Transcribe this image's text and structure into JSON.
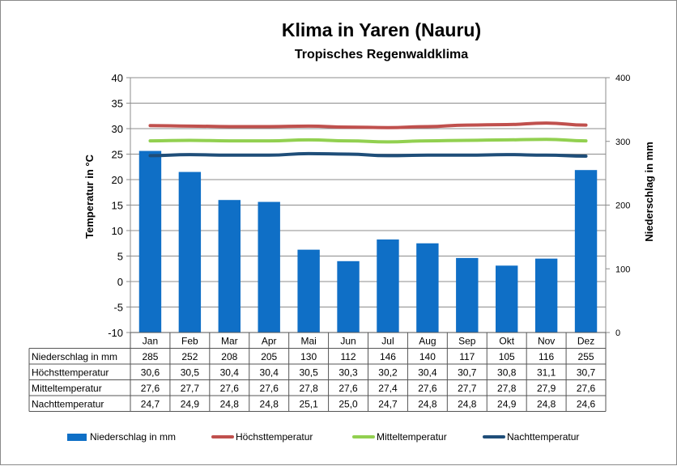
{
  "chart_data": {
    "type": "bar",
    "title": "Klima in Yaren (Nauru)",
    "subtitle": "Tropisches Regenwaldklima",
    "ylabel_left": "Temperatur in °C",
    "ylabel_right": "Niederschlag in mm",
    "ylim_left": [
      -10,
      40
    ],
    "ylim_right": [
      0,
      400
    ],
    "yticks_left": [
      40,
      35,
      30,
      25,
      20,
      15,
      10,
      5,
      0,
      -5,
      -10
    ],
    "yticks_right": [
      400,
      300,
      200,
      100,
      0
    ],
    "grid": true,
    "legend_position": "bottom",
    "categories": [
      "Jan",
      "Feb",
      "Mar",
      "Apr",
      "Mai",
      "Jun",
      "Jul",
      "Aug",
      "Sep",
      "Okt",
      "Nov",
      "Dez"
    ],
    "series": [
      {
        "name": "Niederschlag in mm",
        "kind": "bar",
        "axis": "right",
        "color": "#0f6fc6",
        "values": [
          285,
          252,
          208,
          205,
          130,
          112,
          146,
          140,
          117,
          105,
          116,
          255
        ],
        "labels": [
          "285",
          "252",
          "208",
          "205",
          "130",
          "112",
          "146",
          "140",
          "117",
          "105",
          "116",
          "255"
        ]
      },
      {
        "name": "Höchsttemperatur",
        "kind": "line",
        "axis": "left",
        "color": "#c0504d",
        "values": [
          30.6,
          30.5,
          30.4,
          30.4,
          30.5,
          30.3,
          30.2,
          30.4,
          30.7,
          30.8,
          31.1,
          30.7
        ],
        "labels": [
          "30,6",
          "30,5",
          "30,4",
          "30,4",
          "30,5",
          "30,3",
          "30,2",
          "30,4",
          "30,7",
          "30,8",
          "31,1",
          "30,7"
        ]
      },
      {
        "name": "Mitteltemperatur",
        "kind": "line",
        "axis": "left",
        "color": "#92d050",
        "values": [
          27.6,
          27.7,
          27.6,
          27.6,
          27.8,
          27.6,
          27.4,
          27.6,
          27.7,
          27.8,
          27.9,
          27.6
        ],
        "labels": [
          "27,6",
          "27,7",
          "27,6",
          "27,6",
          "27,8",
          "27,6",
          "27,4",
          "27,6",
          "27,7",
          "27,8",
          "27,9",
          "27,6"
        ]
      },
      {
        "name": "Nachttemperatur",
        "kind": "line",
        "axis": "left",
        "color": "#1f4e79",
        "values": [
          24.7,
          24.9,
          24.8,
          24.8,
          25.1,
          25.0,
          24.7,
          24.8,
          24.8,
          24.9,
          24.8,
          24.6
        ],
        "labels": [
          "24,7",
          "24,9",
          "24,8",
          "24,8",
          "25,1",
          "25,0",
          "24,7",
          "24,8",
          "24,8",
          "24,9",
          "24,8",
          "24,6"
        ]
      }
    ]
  }
}
